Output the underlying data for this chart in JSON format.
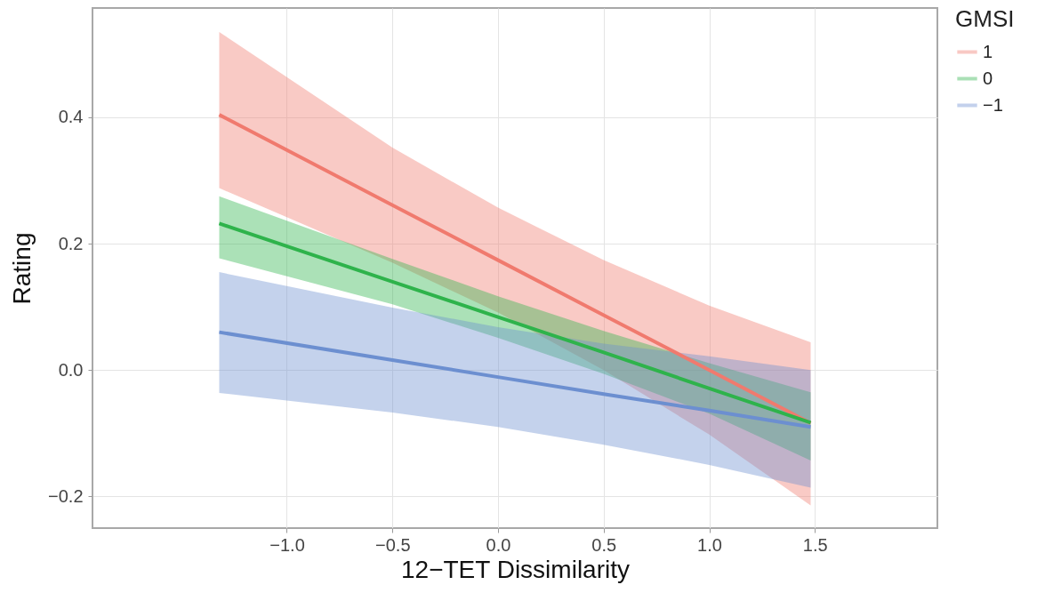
{
  "chart_data": {
    "type": "line",
    "xlabel": "12−TET Dissimilarity",
    "ylabel": "Rating",
    "legend_title": "GMSI",
    "legend": "right",
    "grid": true,
    "xlim": [
      -1.92,
      2.08
    ],
    "xticks": [
      {
        "value": -1,
        "label": "−1.0"
      },
      {
        "value": -0.5,
        "label": "−0.5"
      },
      {
        "value": 0,
        "label": "0.0"
      },
      {
        "value": 0.5,
        "label": "0.5"
      },
      {
        "value": 1,
        "label": "1.0"
      },
      {
        "value": 1.5,
        "label": "1.5"
      }
    ],
    "ylim": [
      -0.25,
      0.573
    ],
    "yticks": [
      {
        "value": -0.2,
        "label": "−0.2"
      },
      {
        "value": 0,
        "label": "0.0"
      },
      {
        "value": 0.2,
        "label": "0.2"
      },
      {
        "value": 0.4,
        "label": "0.4"
      }
    ],
    "series": [
      {
        "name": "1",
        "color": "#f07a6e",
        "x": [
          -1.32,
          -0.5,
          0,
          0.5,
          1,
          1.48
        ],
        "values": [
          0.404,
          0.261,
          0.174,
          0.087,
          0,
          -0.084
        ],
        "upper": [
          0.535,
          0.352,
          0.257,
          0.174,
          0.102,
          0.044
        ],
        "lower": [
          0.288,
          0.17,
          0.091,
          0,
          -0.102,
          -0.214
        ]
      },
      {
        "name": "0",
        "color": "#2eb34b",
        "x": [
          -1.32,
          -0.5,
          0,
          0.5,
          1,
          1.48
        ],
        "values": [
          0.232,
          0.14,
          0.084,
          0.028,
          -0.029,
          -0.083
        ],
        "upper": [
          0.275,
          0.176,
          0.117,
          0.062,
          0.011,
          -0.035
        ],
        "lower": [
          0.177,
          0.104,
          0.051,
          -0.006,
          -0.069,
          -0.143
        ]
      },
      {
        "name": "−1",
        "color": "#6c8fd0",
        "x": [
          -1.32,
          -0.5,
          0,
          0.5,
          1,
          1.48
        ],
        "values": [
          0.06,
          0.016,
          -0.011,
          -0.038,
          -0.064,
          -0.09
        ],
        "upper": [
          0.155,
          0.099,
          0.068,
          0.042,
          0.022,
          0
        ],
        "lower": [
          -0.036,
          -0.067,
          -0.09,
          -0.118,
          -0.15,
          -0.186
        ]
      }
    ]
  }
}
